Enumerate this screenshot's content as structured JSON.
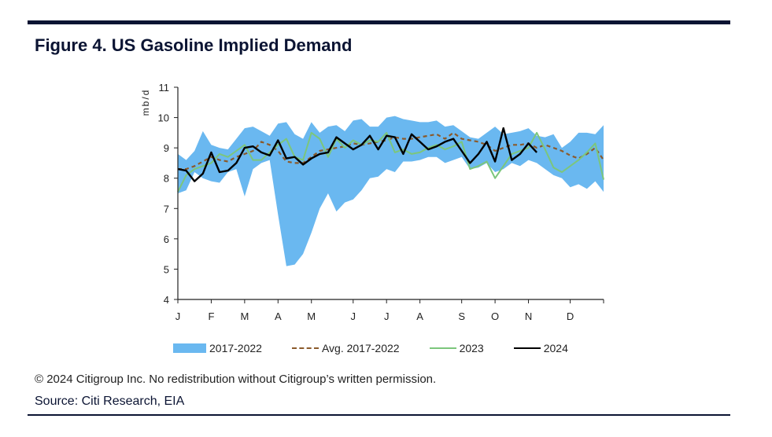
{
  "figure": {
    "title": "Figure 4. US Gasoline Implied Demand",
    "copyright": "© 2024 Citigroup Inc. No redistribution without Citigroup’s written permission.",
    "source": "Source: Citi Research, EIA"
  },
  "chart_data": {
    "type": "line",
    "title": "Figure 4. US Gasoline Implied Demand",
    "ylabel": "mb/d",
    "xlabel": "",
    "ylim": [
      4,
      11
    ],
    "yticks": [
      4,
      5,
      6,
      7,
      8,
      9,
      10,
      11
    ],
    "x_weeks": 52,
    "month_labels": [
      "J",
      "F",
      "M",
      "A",
      "M",
      "J",
      "J",
      "A",
      "S",
      "O",
      "N",
      "D"
    ],
    "month_start_weeks": [
      1,
      5,
      9,
      13,
      17,
      22,
      26,
      30,
      35,
      39,
      43,
      48
    ],
    "legend_position": "bottom",
    "colors": {
      "band": "#6ab8f0",
      "avg": "#8b5a2b",
      "y2023": "#7cc67c",
      "y2024": "#000000"
    },
    "band": {
      "name": "2017-2022",
      "lower": [
        7.5,
        7.6,
        8.2,
        8.0,
        7.9,
        7.85,
        8.2,
        8.3,
        7.4,
        8.3,
        8.5,
        8.6,
        6.8,
        5.1,
        5.15,
        5.5,
        6.2,
        7.0,
        7.5,
        6.9,
        7.2,
        7.3,
        7.6,
        8.0,
        8.05,
        8.3,
        8.2,
        8.55,
        8.55,
        8.6,
        8.7,
        8.7,
        8.5,
        8.6,
        8.7,
        8.3,
        8.35,
        8.5,
        8.2,
        8.3,
        8.5,
        8.4,
        8.6,
        8.5,
        8.3,
        8.1,
        8.0,
        7.7,
        7.8,
        7.65,
        7.9,
        7.55
      ],
      "upper": [
        8.8,
        8.6,
        8.9,
        9.55,
        9.1,
        9.0,
        8.95,
        9.3,
        9.65,
        9.7,
        9.55,
        9.4,
        9.8,
        9.85,
        9.45,
        9.3,
        9.85,
        9.5,
        9.7,
        9.75,
        9.55,
        9.9,
        9.95,
        9.7,
        9.7,
        10.0,
        10.05,
        9.95,
        9.9,
        9.85,
        9.85,
        9.9,
        9.7,
        9.75,
        9.55,
        9.35,
        9.3,
        9.5,
        9.7,
        9.45,
        9.5,
        9.55,
        9.65,
        9.4,
        9.35,
        9.45,
        9.0,
        9.2,
        9.5,
        9.5,
        9.45,
        9.75
      ]
    },
    "series": [
      {
        "name": "Avg. 2017-2022",
        "values": [
          8.3,
          8.3,
          8.4,
          8.55,
          8.7,
          8.6,
          8.55,
          8.7,
          8.8,
          8.9,
          9.2,
          9.1,
          8.9,
          8.55,
          8.5,
          8.5,
          8.7,
          8.9,
          8.95,
          9.0,
          9.05,
          9.15,
          9.1,
          9.15,
          9.2,
          9.25,
          9.35,
          9.3,
          9.3,
          9.35,
          9.4,
          9.45,
          9.3,
          9.5,
          9.3,
          9.25,
          9.2,
          9.1,
          8.9,
          9.0,
          9.1,
          9.1,
          9.15,
          9.0,
          9.1,
          9.0,
          8.9,
          8.75,
          8.65,
          8.8,
          9.0,
          8.6
        ]
      },
      {
        "name": "2023",
        "values": [
          7.55,
          8.1,
          8.3,
          8.4,
          8.5,
          8.8,
          8.7,
          8.9,
          9.1,
          8.6,
          8.6,
          8.85,
          9.1,
          9.3,
          8.7,
          8.6,
          9.5,
          9.3,
          8.7,
          9.3,
          9.0,
          9.25,
          9.1,
          9.25,
          9.2,
          9.5,
          8.85,
          8.95,
          8.8,
          8.85,
          9.0,
          9.1,
          8.95,
          9.05,
          9.2,
          8.3,
          8.4,
          8.55,
          8.0,
          8.4,
          8.8,
          8.9,
          9.0,
          9.5,
          8.95,
          8.35,
          8.2,
          8.4,
          8.6,
          8.85,
          9.15,
          7.95
        ]
      },
      {
        "name": "2024",
        "values": [
          8.3,
          8.25,
          7.9,
          8.15,
          8.85,
          8.2,
          8.25,
          8.5,
          9.0,
          9.05,
          8.85,
          8.75,
          9.25,
          8.65,
          8.7,
          8.45,
          8.65,
          8.8,
          8.85,
          9.35,
          9.15,
          8.95,
          9.1,
          9.4,
          8.95,
          9.4,
          9.35,
          8.8,
          9.45,
          9.2,
          8.95,
          9.05,
          9.2,
          9.3,
          8.9,
          8.5,
          8.8,
          9.2,
          8.55,
          9.65,
          8.6,
          8.8,
          9.15,
          8.85
        ]
      }
    ]
  }
}
